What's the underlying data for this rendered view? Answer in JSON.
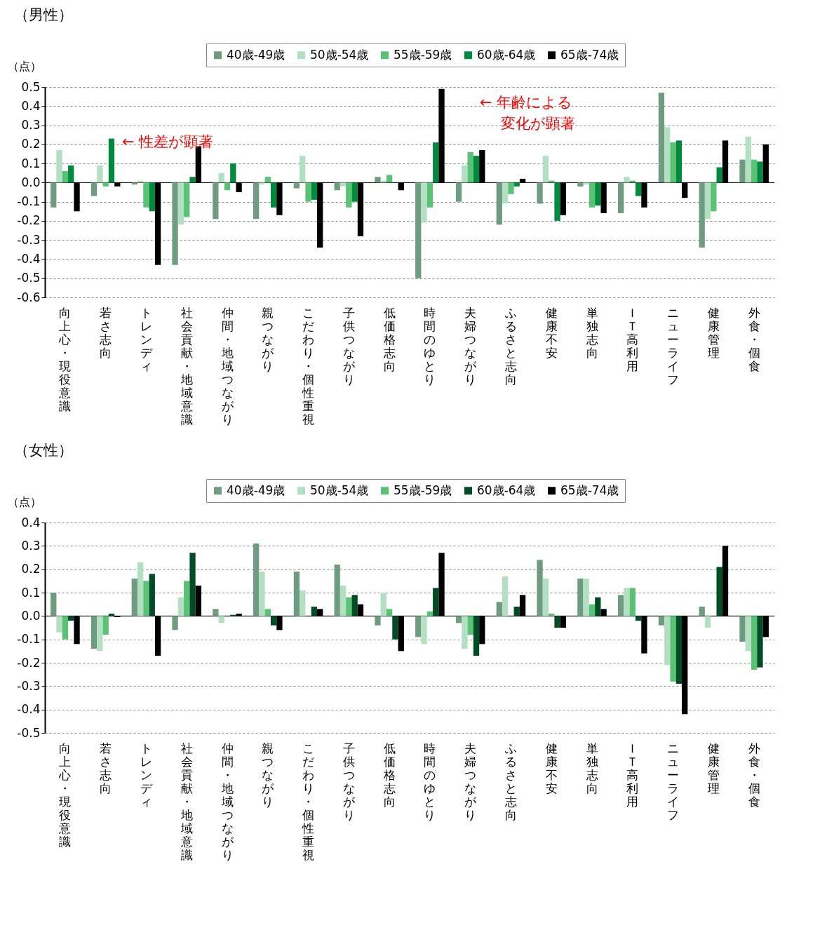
{
  "chart_data": [
    {
      "type": "bar",
      "title": "（男性）",
      "ylabel": "（点）",
      "legend": "top",
      "grid": "y",
      "categories": [
        "向上心・現役意識",
        "若さ志向",
        "トレンディ",
        "社会貢献・地域意識",
        "仲間・地域つながり",
        "親つながり",
        "こだわり・個性重視",
        "子供つながり",
        "低価格志向",
        "時間のゆとり",
        "夫婦つながり",
        "ふるさと志向",
        "健康不安",
        "単独志向",
        "ＩＴ高利用",
        "ニューライフ",
        "健康管理",
        "外食・個食"
      ],
      "ylim": [
        -0.6,
        0.5
      ],
      "yticks": [
        -0.6,
        -0.5,
        -0.4,
        -0.3,
        -0.2,
        -0.1,
        {
          "value": 0,
          "label": "0.0"
        },
        0.1,
        0.2,
        0.3,
        0.4,
        0.5
      ],
      "series": [
        {
          "name": "40歳-49歳",
          "color": "#6f9c80",
          "values": [
            -0.13,
            -0.07,
            -0.01,
            -0.43,
            -0.19,
            -0.19,
            -0.03,
            -0.04,
            0.03,
            -0.5,
            -0.1,
            -0.22,
            -0.11,
            -0.02,
            -0.16,
            0.47,
            -0.34,
            0.12
          ]
        },
        {
          "name": "50歳-54歳",
          "color": "#b3e0c2",
          "values": [
            0.17,
            0.09,
            0.01,
            -0.22,
            0.05,
            -0.01,
            0.14,
            -0.02,
            0.01,
            -0.21,
            0.09,
            -0.11,
            0.14,
            -0.01,
            0.03,
            0.29,
            -0.19,
            0.24
          ]
        },
        {
          "name": "55歳-59歳",
          "color": "#5ac274",
          "values": [
            0.06,
            -0.02,
            -0.13,
            -0.18,
            -0.04,
            0.03,
            -0.1,
            -0.13,
            0.04,
            -0.13,
            0.16,
            -0.06,
            0.01,
            -0.13,
            0.01,
            0.21,
            -0.15,
            0.12
          ]
        },
        {
          "name": "60歳-64歳",
          "color": "#008a3e",
          "values": [
            0.09,
            0.23,
            -0.15,
            0.03,
            0.1,
            -0.13,
            -0.09,
            -0.1,
            0.0,
            0.21,
            0.14,
            -0.02,
            -0.2,
            -0.12,
            -0.07,
            0.22,
            0.08,
            0.11
          ]
        },
        {
          "name": "65歳-74歳",
          "color": "#000000",
          "values": [
            -0.15,
            -0.02,
            -0.43,
            0.19,
            -0.05,
            -0.17,
            -0.34,
            -0.28,
            -0.04,
            0.49,
            0.17,
            0.02,
            -0.17,
            -0.16,
            -0.13,
            -0.08,
            0.22,
            0.2
          ]
        }
      ],
      "annotations": [
        "← 性差が顕著",
        "← 年齢による",
        "変化が顕著"
      ]
    },
    {
      "type": "bar",
      "title": "（女性）",
      "ylabel": "（点）",
      "legend": "top",
      "grid": "y",
      "categories": [
        "向上心・現役意識",
        "若さ志向",
        "トレンディ",
        "社会貢献・地域意識",
        "仲間・地域つながり",
        "親つながり",
        "こだわり・個性重視",
        "子供つながり",
        "低価格志向",
        "時間のゆとり",
        "夫婦つながり",
        "ふるさと志向",
        "健康不安",
        "単独志向",
        "ＩＴ高利用",
        "ニューライフ",
        "健康管理",
        "外食・個食"
      ],
      "ylim": [
        -0.5,
        0.4
      ],
      "yticks": [
        -0.5,
        -0.4,
        -0.3,
        -0.2,
        -0.1,
        {
          "value": 0,
          "label": "0.0"
        },
        0.1,
        0.2,
        0.3,
        0.4
      ],
      "series": [
        {
          "name": "40歳-49歳",
          "color": "#6f9c80",
          "values": [
            0.1,
            -0.14,
            0.16,
            -0.06,
            0.03,
            0.31,
            0.19,
            0.22,
            -0.04,
            -0.09,
            -0.03,
            0.06,
            0.24,
            0.16,
            0.09,
            -0.04,
            0.04,
            -0.11
          ]
        },
        {
          "name": "50歳-54歳",
          "color": "#b3e0c2",
          "values": [
            -0.07,
            -0.15,
            0.23,
            0.08,
            -0.03,
            0.19,
            0.11,
            0.13,
            0.1,
            -0.12,
            -0.14,
            0.17,
            0.16,
            0.16,
            0.12,
            -0.21,
            -0.05,
            -0.15
          ]
        },
        {
          "name": "55歳-59歳",
          "color": "#5ac274",
          "values": [
            -0.1,
            -0.08,
            0.15,
            0.15,
            0.0,
            0.03,
            0.0,
            0.08,
            0.03,
            0.02,
            -0.08,
            0.0,
            0.01,
            0.05,
            0.12,
            -0.28,
            0.0,
            -0.23
          ]
        },
        {
          "name": "60歳-64歳",
          "color": "#004d25",
          "values": [
            -0.02,
            0.01,
            0.18,
            0.27,
            0.005,
            -0.04,
            0.04,
            0.09,
            -0.1,
            0.12,
            -0.17,
            0.04,
            -0.05,
            0.08,
            -0.02,
            -0.29,
            0.21,
            -0.22
          ]
        },
        {
          "name": "65歳-74歳",
          "color": "#000000",
          "values": [
            -0.12,
            -0.005,
            -0.17,
            0.13,
            0.01,
            -0.06,
            0.03,
            0.05,
            -0.15,
            0.27,
            -0.12,
            0.09,
            -0.05,
            0.03,
            -0.16,
            -0.42,
            0.3,
            -0.09
          ]
        }
      ]
    }
  ]
}
